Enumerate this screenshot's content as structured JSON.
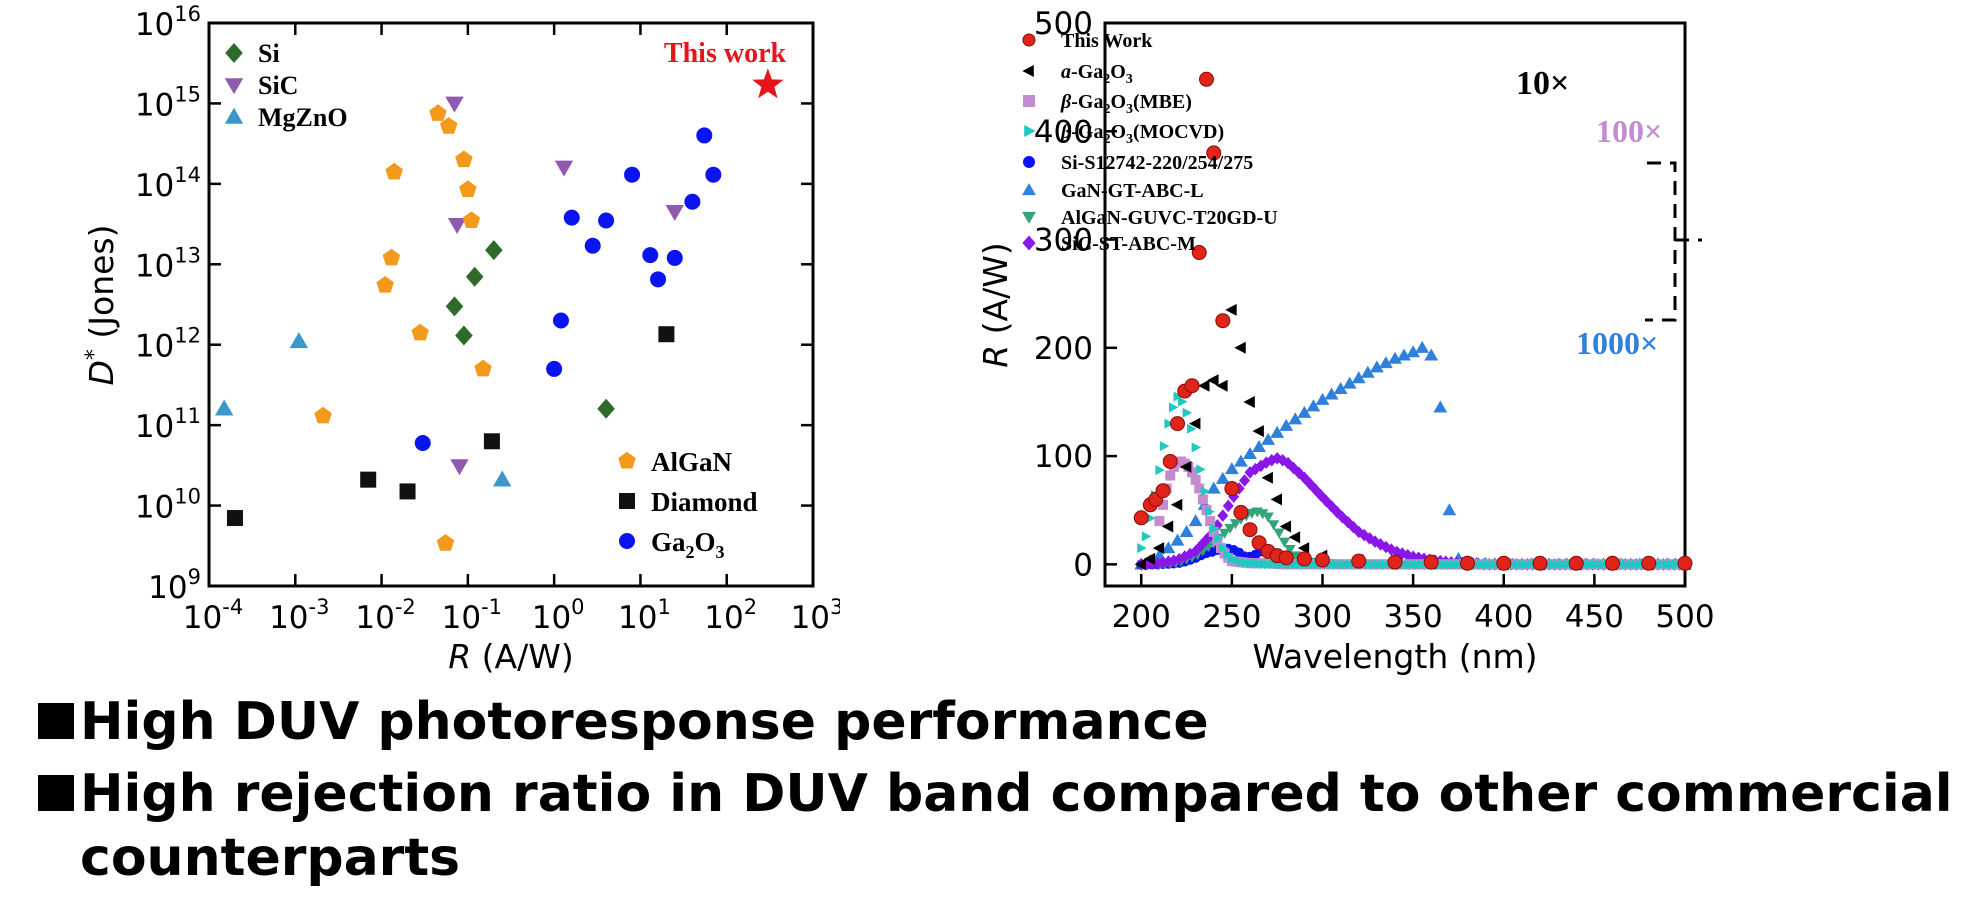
{
  "chart_data": [
    {
      "type": "scatter",
      "xlabel_var": "R",
      "xlabel_unit": " (A/W)",
      "ylabel_var": "D",
      "ylabel_sup": "*",
      "ylabel_unit": " (Jones)",
      "x_scale": "log",
      "y_scale": "log",
      "xlim": [
        0.0001,
        1000
      ],
      "ylim": [
        1000000000.0,
        1e+16
      ],
      "xticks": [
        {
          "base": "10",
          "exp": "-4"
        },
        {
          "base": "10",
          "exp": "-3"
        },
        {
          "base": "10",
          "exp": "-2"
        },
        {
          "base": "10",
          "exp": "-1"
        },
        {
          "base": "10",
          "exp": "0"
        },
        {
          "base": "10",
          "exp": "1"
        },
        {
          "base": "10",
          "exp": "2"
        },
        {
          "base": "10",
          "exp": "3"
        }
      ],
      "yticks": [
        {
          "base": "10",
          "exp": "9"
        },
        {
          "base": "10",
          "exp": "10"
        },
        {
          "base": "10",
          "exp": "11"
        },
        {
          "base": "10",
          "exp": "12"
        },
        {
          "base": "10",
          "exp": "13"
        },
        {
          "base": "10",
          "exp": "14"
        },
        {
          "base": "10",
          "exp": "15"
        },
        {
          "base": "10",
          "exp": "16"
        }
      ],
      "annotation": "This work",
      "series": [
        {
          "name": "Si",
          "marker": "diamond",
          "color": "#2e6b2a",
          "points": [
            [
              0.07,
              3000000000000.0
            ],
            [
              0.09,
              1300000000000.0
            ],
            [
              0.12,
              7000000000000.0
            ],
            [
              0.2,
              15000000000000.0
            ],
            [
              4,
              160000000000.0
            ]
          ]
        },
        {
          "name": "SiC",
          "marker": "triangle-down",
          "color": "#8f5ab0",
          "points": [
            [
              0.07,
              1000000000000000.0
            ],
            [
              0.075,
              31000000000000.0
            ],
            [
              0.08,
              31000000000.0
            ],
            [
              1.3,
              160000000000000.0
            ],
            [
              25,
              45000000000000.0
            ]
          ]
        },
        {
          "name": "MgZnO",
          "marker": "triangle-up",
          "color": "#3b97c9",
          "points": [
            [
              0.00015,
              160000000000.0
            ],
            [
              0.0011,
              1100000000000.0
            ],
            [
              0.25,
              21000000000.0
            ]
          ]
        },
        {
          "name": "AlGaN",
          "marker": "pentagon",
          "color": "#f39a1d",
          "points": [
            [
              0.0021,
              130000000000.0
            ],
            [
              0.011,
              5500000000000.0
            ],
            [
              0.013,
              12000000000000.0
            ],
            [
              0.014,
              140000000000000.0
            ],
            [
              0.028,
              1400000000000.0
            ],
            [
              0.045,
              750000000000000.0
            ],
            [
              0.06,
              520000000000000.0
            ],
            [
              0.055,
              3400000000.0
            ],
            [
              0.09,
              200000000000000.0
            ],
            [
              0.1,
              85000000000000.0
            ],
            [
              0.11,
              35000000000000.0
            ],
            [
              0.15,
              500000000000.0
            ]
          ]
        },
        {
          "name": "Diamond",
          "marker": "square",
          "color": "#111111",
          "points": [
            [
              0.0002,
              7000000000.0
            ],
            [
              0.007,
              21000000000.0
            ],
            [
              0.02,
              15000000000.0
            ],
            [
              0.19,
              63000000000.0
            ],
            [
              20,
              1350000000000.0
            ]
          ]
        },
        {
          "name": "Ga",
          "name_sub1": "2",
          "name_mid": "O",
          "name_sub2": "3",
          "marker": "circle",
          "color": "#0a14f0",
          "points": [
            [
              0.03,
              60000000000.0
            ],
            [
              1,
              500000000000.0
            ],
            [
              1.2,
              2000000000000.0
            ],
            [
              1.6,
              38000000000000.0
            ],
            [
              2.8,
              17000000000000.0
            ],
            [
              4,
              35000000000000.0
            ],
            [
              8,
              130000000000000.0
            ],
            [
              13,
              13000000000000.0
            ],
            [
              16,
              6500000000000.0
            ],
            [
              25,
              12000000000000.0
            ],
            [
              40,
              60000000000000.0
            ],
            [
              55,
              400000000000000.0
            ],
            [
              70,
              130000000000000.0
            ]
          ]
        },
        {
          "name": "This work",
          "marker": "star",
          "color": "#e8141b",
          "points": [
            [
              300,
              1700000000000000.0
            ]
          ]
        }
      ]
    },
    {
      "type": "line",
      "xlabel": "Wavelength (nm)",
      "ylabel_var": "R",
      "ylabel_unit": " (A/W)",
      "xlim": [
        180,
        500
      ],
      "ylim": [
        -20,
        500
      ],
      "xticks": [
        "200",
        "250",
        "300",
        "350",
        "400",
        "450",
        "500"
      ],
      "yticks": [
        "0",
        "100",
        "200",
        "300",
        "400",
        "500"
      ],
      "scale_labels": {
        "ten": "10×",
        "hundred": "100×",
        "thousand": "1000×"
      },
      "series": [
        {
          "name": "This Work",
          "marker": "ball",
          "color": "#e0241a",
          "x": [
            200,
            205,
            208,
            212,
            216,
            220,
            224,
            228,
            232,
            236,
            240,
            245,
            250,
            255,
            260,
            265,
            270,
            275,
            280,
            290,
            300,
            320,
            340,
            360,
            380,
            400,
            420,
            440,
            460,
            480,
            500
          ],
          "y": [
            43,
            55,
            60,
            68,
            95,
            130,
            160,
            165,
            288,
            448,
            380,
            225,
            70,
            48,
            32,
            20,
            12,
            8,
            6,
            5,
            4,
            3,
            2,
            2,
            1,
            1,
            1,
            1,
            1,
            1,
            1
          ]
        },
        {
          "name": "a-Ga2O3",
          "name_italic": "a",
          "name_rest": "-Ga",
          "name_sub1": "2",
          "name_mid": "O",
          "name_sub2": "3",
          "marker": "tri-left",
          "color": "#000000",
          "x": [
            200,
            205,
            210,
            215,
            220,
            225,
            230,
            235,
            240,
            245,
            250,
            255,
            260,
            265,
            270,
            275,
            280,
            285,
            290,
            300,
            320,
            340,
            360,
            380,
            400,
            420,
            440,
            460,
            480,
            500
          ],
          "y": [
            0,
            5,
            15,
            35,
            55,
            90,
            130,
            165,
            170,
            165,
            235,
            200,
            150,
            123,
            80,
            60,
            35,
            25,
            15,
            8,
            4,
            2,
            1,
            1,
            0,
            0,
            0,
            0,
            0,
            0
          ]
        },
        {
          "name": "β-Ga2O3(MBE)",
          "name_italic": "β",
          "name_rest": "-Ga",
          "name_sub1": "2",
          "name_mid": "O",
          "name_sub2": "3",
          "name_tail": "(MBE)",
          "marker": "square",
          "color": "#c58bd1",
          "x": [
            210,
            212,
            214,
            216,
            218,
            220,
            222,
            224,
            226,
            228,
            230,
            232,
            234,
            236,
            238,
            240,
            242,
            244,
            246,
            248,
            250,
            255,
            260,
            270,
            280,
            300,
            340,
            380,
            420,
            460,
            500
          ],
          "y": [
            40,
            55,
            70,
            82,
            90,
            94,
            95,
            93,
            90,
            85,
            78,
            70,
            60,
            50,
            40,
            30,
            22,
            15,
            10,
            6,
            3,
            2,
            1,
            1,
            0,
            0,
            0,
            0,
            0,
            0,
            0
          ]
        },
        {
          "name": "β-Ga2O3(MOCVD)",
          "name_italic": "β",
          "name_rest": "-Ga",
          "name_sub1": "2",
          "name_mid": "O",
          "name_sub2": "3",
          "name_tail": "(MOCVD)",
          "marker": "tri-right",
          "color": "#1fc9c0",
          "x": [
            200,
            203,
            206,
            209,
            212,
            215,
            218,
            220,
            222,
            224,
            226,
            228,
            230,
            232,
            234,
            236,
            238,
            240,
            243,
            246,
            250,
            255,
            260,
            270,
            280,
            300,
            340,
            380,
            420,
            460,
            500
          ],
          "y": [
            15,
            28,
            50,
            78,
            105,
            130,
            148,
            155,
            152,
            145,
            135,
            122,
            108,
            92,
            75,
            60,
            45,
            33,
            22,
            12,
            5,
            2,
            1,
            0,
            0,
            0,
            0,
            0,
            0,
            0,
            0
          ]
        },
        {
          "name": "Si-S12742-220/254/275",
          "marker": "dot",
          "color": "#0a14f0",
          "x": [
            200,
            210,
            220,
            225,
            230,
            235,
            240,
            245,
            250,
            255,
            258,
            262,
            266,
            270,
            275,
            280,
            290,
            300,
            320,
            340,
            360,
            380,
            400,
            420,
            440,
            460,
            480,
            500
          ],
          "y": [
            0,
            0,
            1,
            3,
            6,
            10,
            12,
            15,
            14,
            10,
            6,
            8,
            12,
            10,
            5,
            2,
            1,
            0,
            0,
            0,
            0,
            0,
            0,
            0,
            0,
            0,
            0,
            0
          ]
        },
        {
          "name": "GaN-GT-ABC-L",
          "marker": "triangle-up",
          "color": "#2f7fdc",
          "x": [
            200,
            205,
            210,
            215,
            220,
            225,
            230,
            235,
            240,
            250,
            260,
            270,
            280,
            290,
            300,
            310,
            320,
            330,
            340,
            350,
            355,
            358,
            360,
            362,
            364,
            366,
            368,
            370,
            372,
            375,
            380,
            400,
            450,
            500
          ],
          "y": [
            0,
            3,
            8,
            15,
            22,
            30,
            40,
            55,
            70,
            88,
            102,
            115,
            128,
            140,
            152,
            162,
            172,
            182,
            190,
            196,
            200,
            199,
            193,
            180,
            160,
            130,
            90,
            50,
            20,
            5,
            1,
            0,
            0,
            0
          ]
        },
        {
          "name": "AlGaN-GUVC-T20GD-U",
          "marker": "triangle-down",
          "color": "#35a47a",
          "x": [
            210,
            220,
            230,
            240,
            250,
            255,
            260,
            265,
            270,
            275,
            280,
            285,
            290,
            300,
            320,
            350,
            400,
            450,
            500
          ],
          "y": [
            0,
            2,
            8,
            20,
            35,
            42,
            47,
            49,
            44,
            32,
            18,
            8,
            3,
            1,
            0,
            0,
            0,
            0,
            0
          ]
        },
        {
          "name": "SiC-ST-ABC-M",
          "marker": "diamond",
          "color": "#8b16e8",
          "x": [
            200,
            210,
            220,
            230,
            240,
            250,
            260,
            270,
            275,
            280,
            290,
            300,
            310,
            320,
            330,
            340,
            350,
            360,
            370,
            380,
            390,
            400,
            420,
            450,
            500
          ],
          "y": [
            0,
            1,
            4,
            12,
            30,
            60,
            85,
            95,
            98,
            95,
            80,
            62,
            45,
            30,
            20,
            12,
            7,
            4,
            2,
            1,
            0,
            0,
            0,
            0,
            0
          ]
        }
      ]
    }
  ],
  "bullets": [
    {
      "text": "High DUV photoresponse performance"
    },
    {
      "text": "High rejection ratio in DUV band compared to other commercial counterparts"
    }
  ]
}
